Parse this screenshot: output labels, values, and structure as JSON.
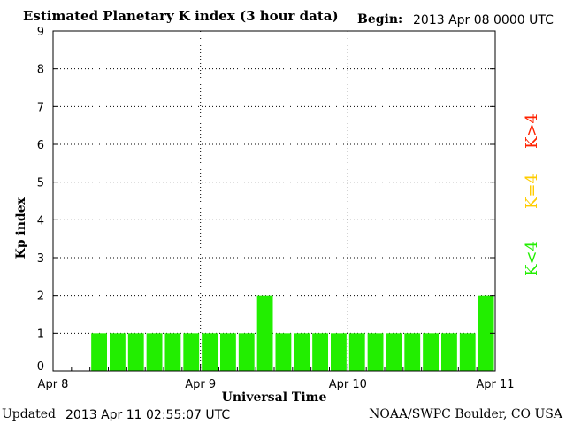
{
  "header": {
    "title": "Estimated Planetary K index (3 hour data)",
    "begin_label": "Begin:",
    "begin_value": "2013 Apr 08 0000 UTC"
  },
  "footer": {
    "updated_label": "Updated",
    "updated_value": "2013 Apr 11 02:55:07 UTC",
    "credit": "NOAA/SWPC Boulder, CO USA"
  },
  "legend": {
    "below": {
      "text": "K<4",
      "color": "#22ee00"
    },
    "equal": {
      "text": "K=4",
      "color": "#ffcc00"
    },
    "above": {
      "text": "K>4",
      "color": "#ff2200"
    }
  },
  "chart_data": {
    "type": "bar",
    "xlabel": "Universal Time",
    "ylabel": "Kp index",
    "ylim": [
      0,
      9
    ],
    "yticks": [
      0,
      1,
      2,
      3,
      4,
      5,
      6,
      7,
      8,
      9
    ],
    "xticks": [
      "Apr 8",
      "Apr 9",
      "Apr 10",
      "Apr 11"
    ],
    "interval_hours": 3,
    "grid": true,
    "bar_color": "#22ee00",
    "values": [
      null,
      null,
      1,
      1,
      1,
      1,
      1,
      1,
      1,
      1,
      1,
      2,
      1,
      1,
      1,
      1,
      1,
      1,
      1,
      1,
      1,
      1,
      1,
      2
    ]
  }
}
